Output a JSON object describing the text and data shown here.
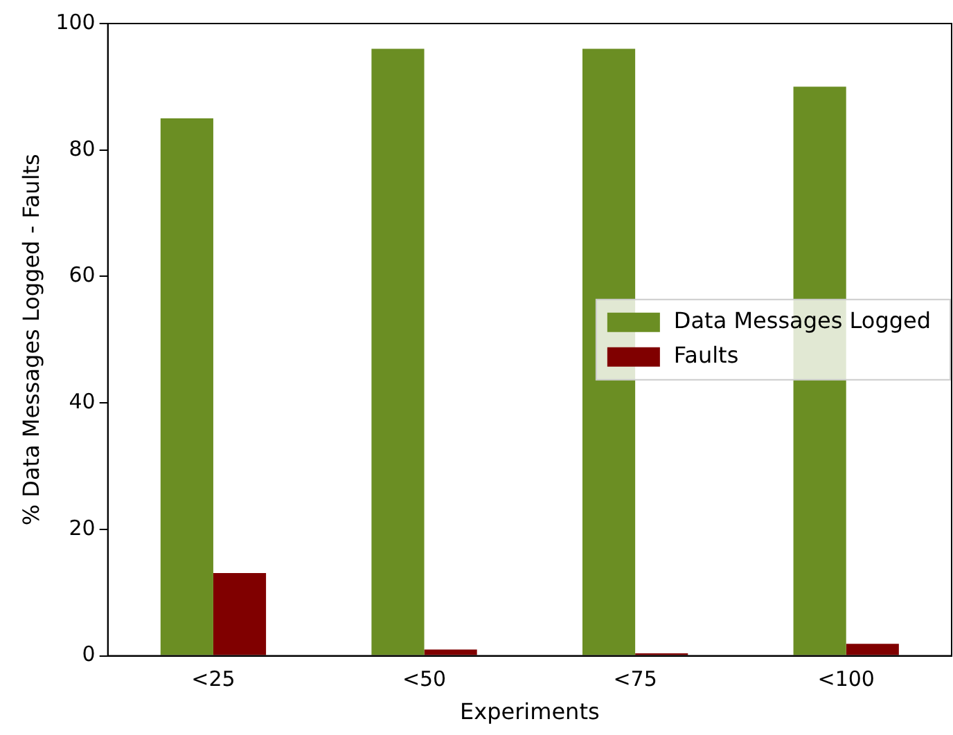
{
  "chart_data": {
    "type": "bar",
    "xlabel": "Experiments",
    "ylabel": "% Data Messages Logged - Faults",
    "categories": [
      "<25",
      "<50",
      "<75",
      "<100"
    ],
    "series": [
      {
        "name": "Data Messages Logged",
        "color": "#6b8e23",
        "values": [
          85,
          96,
          96,
          90
        ]
      },
      {
        "name": "Faults",
        "color": "#800000",
        "values": [
          13.1,
          1.0,
          0.4,
          1.9
        ]
      }
    ],
    "ylim": [
      0,
      100
    ],
    "yticks": [
      0,
      20,
      40,
      60,
      80,
      100
    ],
    "grid": false,
    "legend": "center right"
  }
}
